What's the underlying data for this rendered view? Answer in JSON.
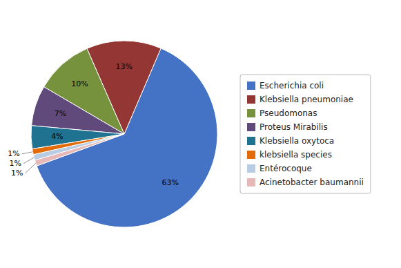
{
  "chart_data": {
    "type": "pie",
    "categories": [
      "Escherichia coli",
      "Klebsiella pneumoniae",
      "Pseudomonas",
      "Proteus Mirabilis",
      "Klebsiella oxytoca",
      "klebsiella species",
      "Entérocoque",
      "Acinetobacter baumannii"
    ],
    "values": [
      63,
      13,
      10,
      7,
      4,
      1,
      1,
      1
    ],
    "value_labels": [
      "63%",
      "13%",
      "10%",
      "7%",
      "4%",
      "1%",
      "1%",
      "1%"
    ],
    "colors": [
      "#4472C4",
      "#943634",
      "#76923C",
      "#604A7B",
      "#1F7391",
      "#E36C09",
      "#B8CCE4",
      "#E6B9B8"
    ],
    "data_labels": true,
    "legend": "right"
  }
}
